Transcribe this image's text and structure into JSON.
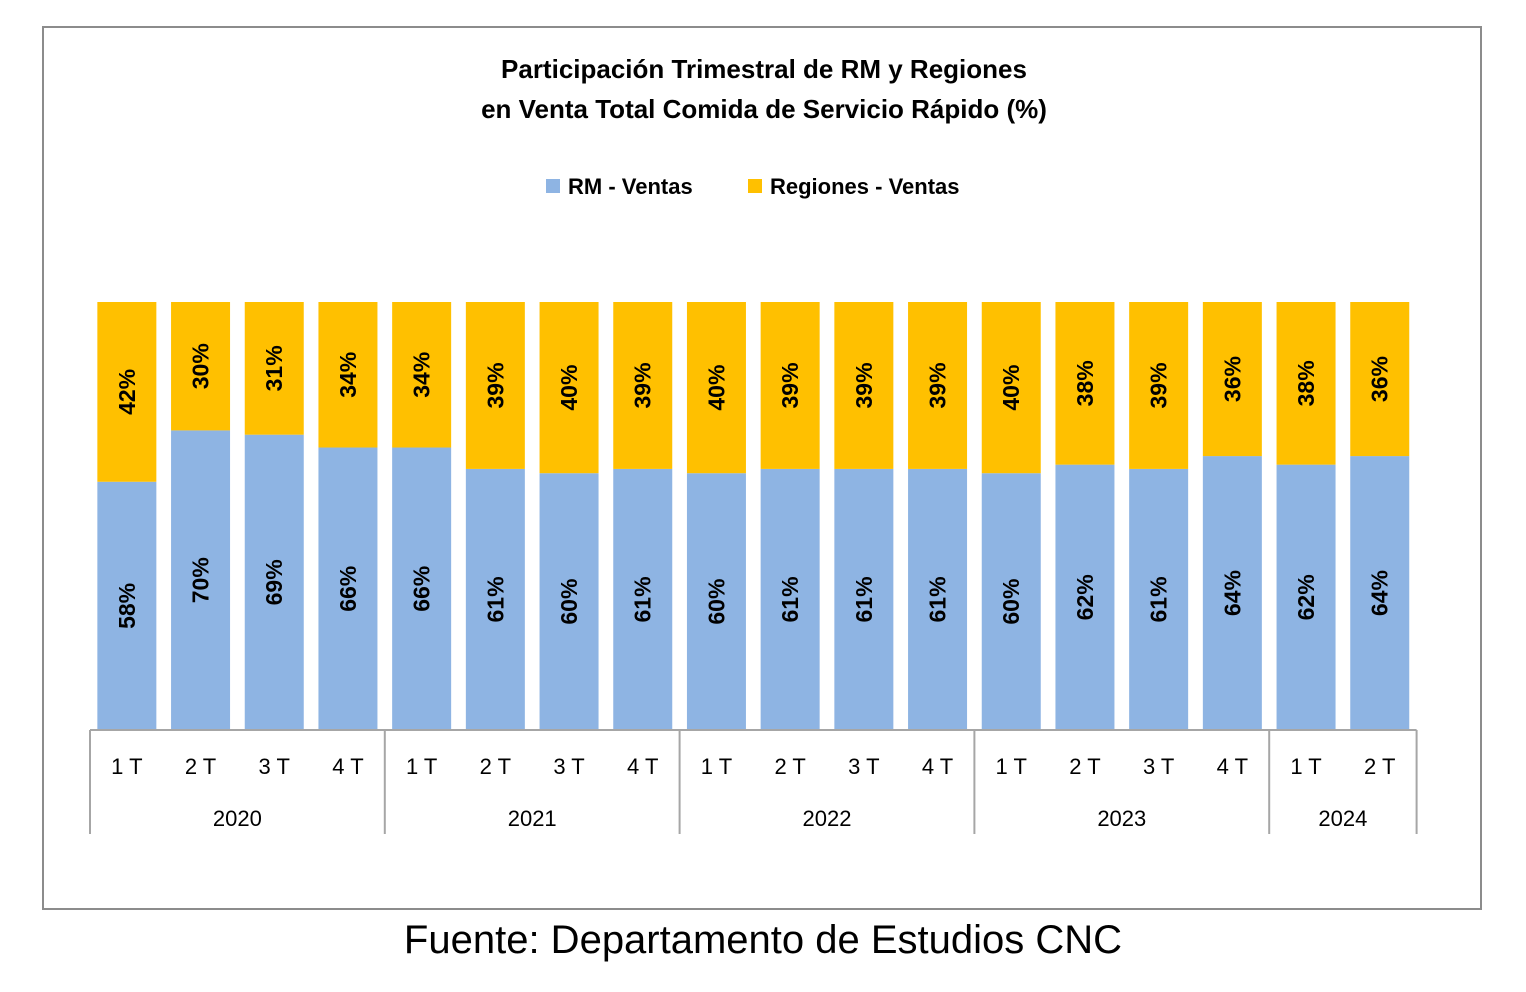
{
  "chart_data": {
    "type": "bar",
    "stacked": true,
    "percent_stacked": true,
    "title": "Participación Trimestral de RM y Regiones",
    "subtitle": "en Venta Total Comida de Servicio Rápido (%)",
    "legend_position": "top",
    "categories": [
      "1 T",
      "2 T",
      "3 T",
      "4 T",
      "1 T",
      "2 T",
      "3 T",
      "4 T",
      "1 T",
      "2 T",
      "3 T",
      "4 T",
      "1 T",
      "2 T",
      "3 T",
      "4 T",
      "1 T",
      "2 T"
    ],
    "groups": [
      {
        "label": "2020",
        "size": 4
      },
      {
        "label": "2021",
        "size": 4
      },
      {
        "label": "2022",
        "size": 4
      },
      {
        "label": "2023",
        "size": 4
      },
      {
        "label": "2024",
        "size": 2
      }
    ],
    "series": [
      {
        "name": "RM - Ventas",
        "color": "#8eb4e3",
        "values": [
          58,
          70,
          69,
          66,
          66,
          61,
          60,
          61,
          60,
          61,
          61,
          61,
          60,
          62,
          61,
          64,
          62,
          64
        ],
        "labels": [
          "58%",
          "70%",
          "69%",
          "66%",
          "66%",
          "61%",
          "60%",
          "61%",
          "60%",
          "61%",
          "61%",
          "61%",
          "60%",
          "62%",
          "61%",
          "64%",
          "62%",
          "64%"
        ]
      },
      {
        "name": "Regiones - Ventas",
        "color": "#ffc000",
        "values": [
          42,
          30,
          31,
          34,
          34,
          39,
          40,
          39,
          40,
          39,
          39,
          39,
          40,
          38,
          39,
          36,
          38,
          36
        ],
        "labels": [
          "42%",
          "30%",
          "31%",
          "34%",
          "34%",
          "39%",
          "40%",
          "39%",
          "40%",
          "39%",
          "39%",
          "39%",
          "40%",
          "38%",
          "39%",
          "36%",
          "38%",
          "36%"
        ]
      }
    ],
    "ylim": [
      0,
      100
    ],
    "grid": false
  },
  "source_note": "Fuente: Departamento de Estudios CNC"
}
